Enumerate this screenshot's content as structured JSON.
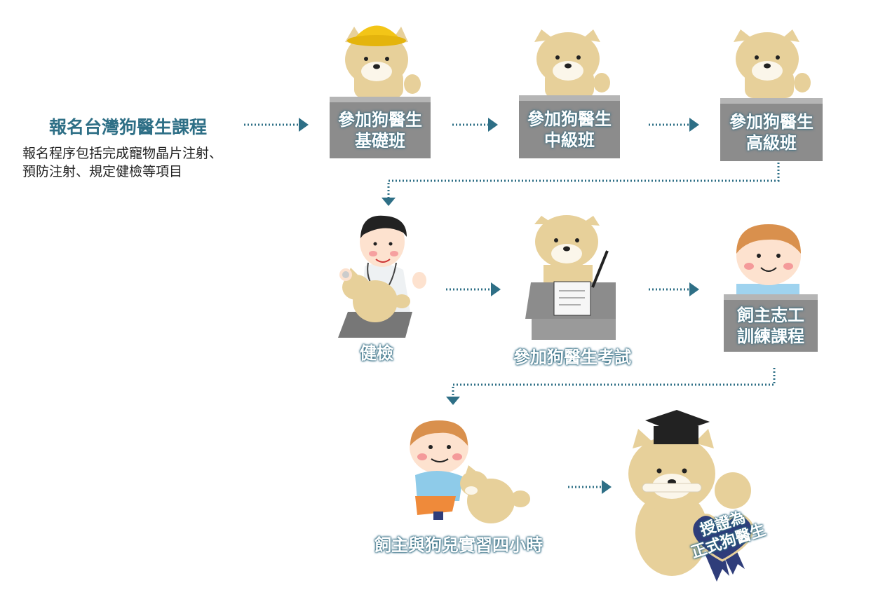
{
  "intro": {
    "title": "報名台灣狗醫生課程",
    "desc_line1": "報名程序包括完成寵物晶片注射、",
    "desc_line2": "預防注射、規定健檢等項目"
  },
  "steps": {
    "basic": {
      "line1": "參加狗醫生",
      "line2": "基礎班"
    },
    "middle": {
      "line1": "參加狗醫生",
      "line2": "中級班"
    },
    "advanced": {
      "line1": "參加狗醫生",
      "line2": "高級班"
    },
    "checkup": "健檢",
    "exam": "參加狗醫生考試",
    "volunteer": {
      "line1": "飼主志工",
      "line2": "訓練課程"
    },
    "practice": "飼主與狗兒實習四小時",
    "certified": {
      "line1": "授證為",
      "line2": "正式狗醫生"
    }
  },
  "colors": {
    "arrow": "#2e6f86",
    "box": "#8c8c8c",
    "dog": "#e7d09a",
    "ribbon": "#2f3d7a"
  },
  "icons": [
    "dog-with-hat-icon",
    "dog-icon",
    "vet-doctor-icon",
    "exam-dog-icon",
    "boy-icon",
    "graduate-dog-icon",
    "ribbon-icon"
  ]
}
